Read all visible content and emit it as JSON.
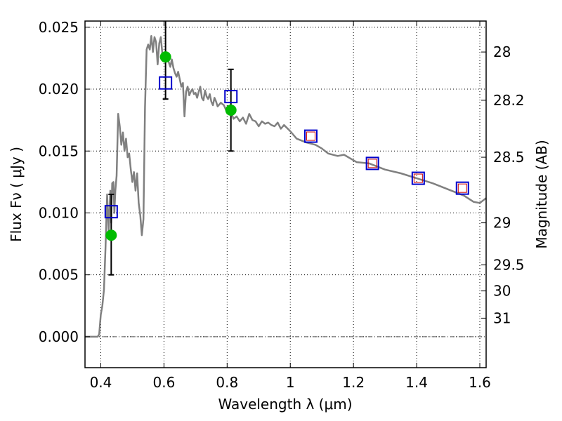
{
  "chart_data": {
    "type": "line",
    "xlabel": "Wavelength  λ (μm)",
    "ylabel": "Flux  Fν  ( μJy )",
    "ylabel_right": "Magnitude (AB)",
    "xlim": [
      0.35,
      1.62
    ],
    "ylim": [
      -0.0025,
      0.0255
    ],
    "grid": true,
    "x_ticks": [
      0.4,
      0.6,
      0.8,
      1.0,
      1.2,
      1.4,
      1.6
    ],
    "x_tick_labels": [
      "0.4",
      "0.6",
      "0.8",
      "1",
      "1.2",
      "1.4",
      "1.6"
    ],
    "y_ticks": [
      0.0,
      0.005,
      0.01,
      0.015,
      0.02,
      0.025
    ],
    "y_tick_labels": [
      "0.000",
      "0.005",
      "0.010",
      "0.015",
      "0.020",
      "0.025"
    ],
    "right_ticks": [
      {
        "label": "28",
        "flux": 0.023
      },
      {
        "label": "28.2",
        "flux": 0.0191
      },
      {
        "label": "28.5",
        "flux": 0.0145
      },
      {
        "label": "29",
        "flux": 0.0092
      },
      {
        "label": "29.5",
        "flux": 0.0058
      },
      {
        "label": "30",
        "flux": 0.0037
      },
      {
        "label": "31",
        "flux": 0.0015
      }
    ],
    "series": [
      {
        "type": "line",
        "color": "#808080",
        "x": [
          0.35,
          0.39,
          0.395,
          0.4,
          0.405,
          0.41,
          0.415,
          0.42,
          0.425,
          0.43,
          0.433,
          0.436,
          0.44,
          0.443,
          0.446,
          0.45,
          0.455,
          0.46,
          0.465,
          0.47,
          0.475,
          0.48,
          0.485,
          0.49,
          0.495,
          0.5,
          0.505,
          0.51,
          0.515,
          0.52,
          0.525,
          0.53,
          0.535,
          0.54,
          0.545,
          0.55,
          0.555,
          0.56,
          0.565,
          0.57,
          0.575,
          0.58,
          0.585,
          0.59,
          0.595,
          0.6,
          0.605,
          0.61,
          0.615,
          0.62,
          0.625,
          0.63,
          0.635,
          0.64,
          0.645,
          0.65,
          0.655,
          0.66,
          0.665,
          0.67,
          0.675,
          0.68,
          0.685,
          0.69,
          0.695,
          0.7,
          0.705,
          0.71,
          0.715,
          0.72,
          0.725,
          0.73,
          0.735,
          0.74,
          0.745,
          0.75,
          0.755,
          0.76,
          0.765,
          0.77,
          0.78,
          0.79,
          0.8,
          0.81,
          0.82,
          0.83,
          0.84,
          0.85,
          0.86,
          0.87,
          0.88,
          0.89,
          0.9,
          0.91,
          0.92,
          0.93,
          0.94,
          0.95,
          0.96,
          0.97,
          0.98,
          1.0,
          1.02,
          1.05,
          1.08,
          1.1,
          1.12,
          1.15,
          1.17,
          1.19,
          1.21,
          1.25,
          1.3,
          1.35,
          1.4,
          1.45,
          1.5,
          1.55,
          1.58,
          1.6,
          1.62
        ],
        "y": [
          0.0,
          0.0,
          0.0002,
          0.0018,
          0.0025,
          0.0038,
          0.0072,
          0.0115,
          0.0085,
          0.0118,
          0.0092,
          0.0124,
          0.0125,
          0.01,
          0.0118,
          0.013,
          0.018,
          0.017,
          0.0155,
          0.0165,
          0.015,
          0.016,
          0.0145,
          0.0148,
          0.0135,
          0.0125,
          0.0133,
          0.0118,
          0.0132,
          0.0108,
          0.0098,
          0.0082,
          0.0095,
          0.0185,
          0.0232,
          0.0236,
          0.0232,
          0.0243,
          0.023,
          0.0242,
          0.0238,
          0.022,
          0.0237,
          0.0242,
          0.0228,
          0.0225,
          0.023,
          0.0224,
          0.0222,
          0.0218,
          0.0224,
          0.0217,
          0.0213,
          0.021,
          0.0214,
          0.0208,
          0.0202,
          0.0205,
          0.0178,
          0.0198,
          0.0202,
          0.0195,
          0.0198,
          0.02,
          0.0196,
          0.0197,
          0.0193,
          0.0198,
          0.0202,
          0.0193,
          0.0191,
          0.0199,
          0.0194,
          0.0192,
          0.0196,
          0.019,
          0.0187,
          0.0193,
          0.019,
          0.0186,
          0.0189,
          0.0187,
          0.0181,
          0.0184,
          0.0176,
          0.0178,
          0.0174,
          0.0177,
          0.0172,
          0.018,
          0.0175,
          0.0174,
          0.017,
          0.0174,
          0.0172,
          0.0173,
          0.0171,
          0.017,
          0.0173,
          0.0168,
          0.0171,
          0.0166,
          0.016,
          0.0157,
          0.0155,
          0.0152,
          0.0148,
          0.0146,
          0.0147,
          0.0144,
          0.0141,
          0.014,
          0.0135,
          0.0132,
          0.0128,
          0.0124,
          0.0119,
          0.0114,
          0.0109,
          0.0108,
          0.0112
        ]
      }
    ],
    "points": {
      "green_observed": {
        "color": "#00bb00",
        "x": [
          0.433,
          0.605,
          0.812
        ],
        "y": [
          0.0082,
          0.0226,
          0.0183
        ]
      },
      "error_bars": {
        "color": "#000000",
        "x": [
          0.433,
          0.605,
          0.812
        ],
        "ylow": [
          0.005,
          0.0192,
          0.015
        ],
        "yhigh": [
          0.0115,
          0.0255,
          0.0216
        ]
      },
      "blue_squares": {
        "color": "#0000cc",
        "x": [
          0.433,
          0.605,
          0.812,
          1.065,
          1.26,
          1.405,
          1.545
        ],
        "y": [
          0.0101,
          0.0205,
          0.0194,
          0.0162,
          0.014,
          0.0128,
          0.012
        ]
      },
      "red_squares": {
        "color": "#cc0000",
        "x": [
          1.065,
          1.26,
          1.405,
          1.545
        ],
        "y": [
          0.0162,
          0.014,
          0.0128,
          0.012
        ]
      }
    }
  }
}
